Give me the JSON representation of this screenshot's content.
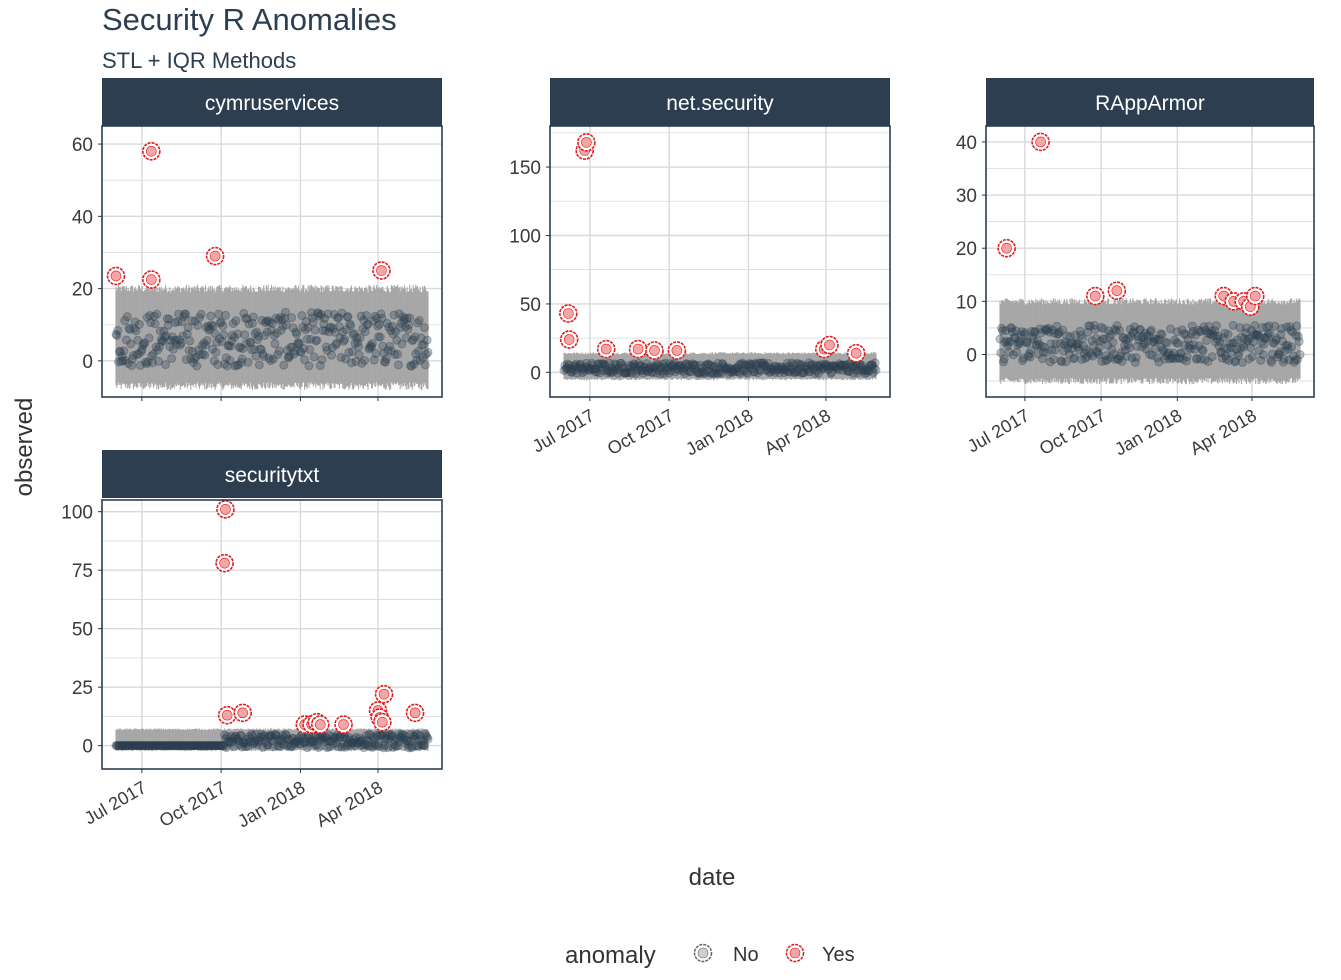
{
  "title": "Security R Anomalies",
  "subtitle": "STL + IQR Methods",
  "chart_data": {
    "type": "scatter",
    "xlabel": "date",
    "ylabel": "observed",
    "x_ticks": [
      "Jul 2017",
      "Oct 2017",
      "Jan 2018",
      "Apr 2018"
    ],
    "x_range": [
      "2017-06-01",
      "2018-05-29"
    ],
    "legend": {
      "title": "anomaly",
      "entries": [
        "No",
        "Yes"
      ],
      "placement": "bottom"
    },
    "colors": {
      "strip": "#2c3e50",
      "normal": "#2c3e50",
      "anomaly": "#e31a1c",
      "band": "#a6a6a6",
      "grid": "#d9d9d9"
    },
    "panels": [
      {
        "name": "cymruservices",
        "ylim": [
          -10,
          65
        ],
        "y_ticks": [
          0,
          20,
          40,
          60
        ],
        "show_x_labels": false,
        "band": {
          "center": 6,
          "lower": -7,
          "upper": 20
        },
        "normal": {
          "level": 6,
          "low": 0,
          "high": 15
        },
        "anomalies": [
          [
            "2017-06-01",
            23.5
          ],
          [
            "2017-07-12",
            58
          ],
          [
            "2017-07-12",
            22.5
          ],
          [
            "2017-09-24",
            29
          ],
          [
            "2018-04-05",
            25
          ]
        ]
      },
      {
        "name": "net.security",
        "ylim": [
          -18,
          180
        ],
        "y_ticks": [
          0,
          50,
          100,
          150
        ],
        "show_x_labels": true,
        "band": {
          "center": 5,
          "lower": -5,
          "upper": 14
        },
        "normal": {
          "level": 3,
          "low": 0,
          "high": 8
        },
        "anomalies": [
          [
            "2017-06-06",
            43
          ],
          [
            "2017-06-07",
            24
          ],
          [
            "2017-06-25",
            162
          ],
          [
            "2017-06-27",
            168
          ],
          [
            "2017-07-20",
            17
          ],
          [
            "2017-08-26",
            17
          ],
          [
            "2017-09-14",
            16
          ],
          [
            "2017-10-10",
            16
          ],
          [
            "2018-03-30",
            17
          ],
          [
            "2018-04-05",
            20
          ],
          [
            "2018-05-06",
            14
          ]
        ]
      },
      {
        "name": "RAppArmor",
        "ylim": [
          -8,
          43
        ],
        "y_ticks": [
          0,
          10,
          20,
          30,
          40
        ],
        "show_x_labels": true,
        "band": {
          "center": 2.5,
          "lower": -5,
          "upper": 10
        },
        "normal": {
          "level": 2,
          "low": -1,
          "high": 6
        },
        "anomalies": [
          [
            "2017-06-09",
            20
          ],
          [
            "2017-07-20",
            40
          ],
          [
            "2017-09-24",
            11
          ],
          [
            "2017-10-20",
            12
          ],
          [
            "2018-02-26",
            11
          ],
          [
            "2018-03-10",
            10
          ],
          [
            "2018-03-22",
            10
          ],
          [
            "2018-03-30",
            9
          ],
          [
            "2018-04-05",
            11
          ]
        ]
      },
      {
        "name": "securitytxt",
        "ylim": [
          -10,
          105
        ],
        "y_ticks": [
          0,
          25,
          50,
          75,
          100
        ],
        "show_x_labels": true,
        "band": {
          "center": 3,
          "lower": -2,
          "upper": 7
        },
        "normal": {
          "level": 2,
          "low": 0,
          "high": 6
        },
        "anomalies": [
          [
            "2017-10-06",
            101
          ],
          [
            "2017-10-05",
            78
          ],
          [
            "2017-10-08",
            13
          ],
          [
            "2017-10-26",
            14
          ],
          [
            "2018-01-06",
            9
          ],
          [
            "2018-01-14",
            9
          ],
          [
            "2018-01-20",
            10
          ],
          [
            "2018-01-24",
            9
          ],
          [
            "2018-02-20",
            9
          ],
          [
            "2018-04-01",
            15
          ],
          [
            "2018-04-03",
            12
          ],
          [
            "2018-04-06",
            10
          ],
          [
            "2018-04-08",
            22
          ],
          [
            "2018-05-14",
            14
          ]
        ]
      }
    ]
  }
}
